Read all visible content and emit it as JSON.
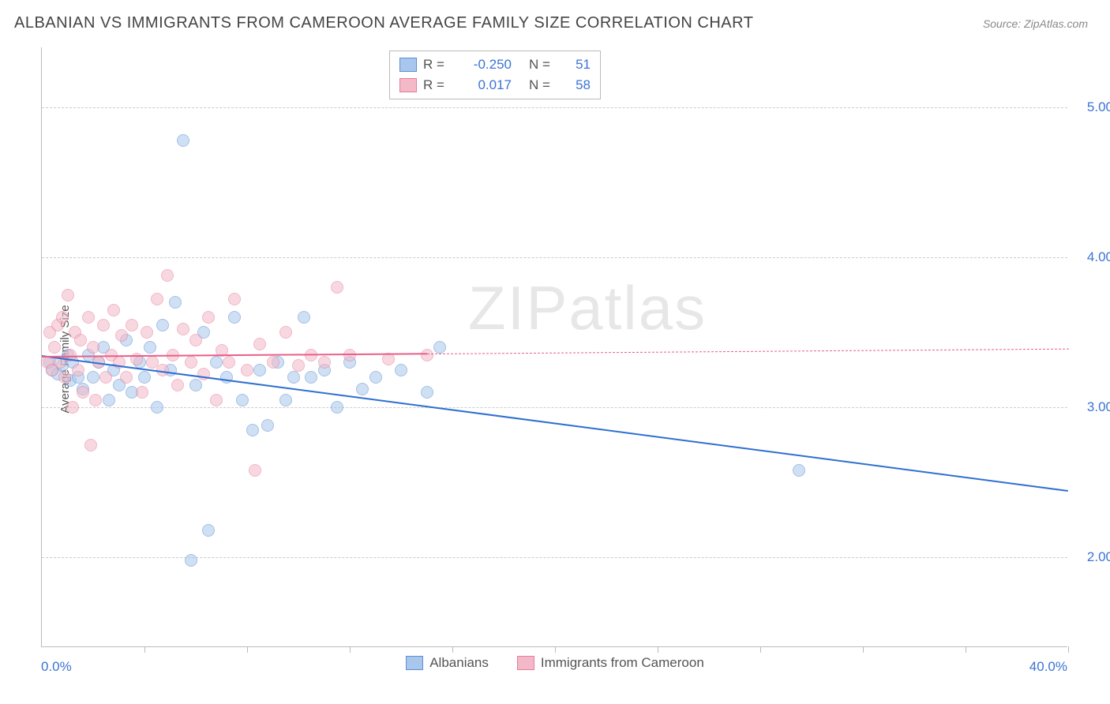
{
  "title": "ALBANIAN VS IMMIGRANTS FROM CAMEROON AVERAGE FAMILY SIZE CORRELATION CHART",
  "source": "Source: ZipAtlas.com",
  "ylabel": "Average Family Size",
  "watermark": "ZIPatlas",
  "chart": {
    "type": "scatter",
    "xlim": [
      0,
      40
    ],
    "ylim": [
      1.4,
      5.4
    ],
    "x_tick_positions": [
      0,
      4,
      8,
      12,
      16,
      20,
      24,
      28,
      32,
      36,
      40
    ],
    "x_axis_label_left": "0.0%",
    "x_axis_label_right": "40.0%",
    "y_ticks": [
      2.0,
      3.0,
      4.0,
      5.0
    ],
    "y_tick_labels": [
      "2.00",
      "3.00",
      "4.00",
      "5.00"
    ],
    "background_color": "#ffffff",
    "grid_color": "#cccccc",
    "axis_color": "#bbbbbb",
    "marker_size": 16,
    "marker_opacity": 0.55,
    "series": [
      {
        "name": "Albanians",
        "fill": "#a9c7ec",
        "stroke": "#5a8fd6",
        "trend_color": "#2f6fd0",
        "R": "-0.250",
        "N": "51",
        "trend": {
          "x1": 0,
          "y1": 3.35,
          "x2": 40,
          "y2": 2.45,
          "dash_from_x": 40
        },
        "points": [
          [
            0.3,
            3.3
          ],
          [
            0.4,
            3.25
          ],
          [
            0.6,
            3.22
          ],
          [
            0.8,
            3.28
          ],
          [
            1.0,
            3.35
          ],
          [
            1.1,
            3.18
          ],
          [
            1.2,
            3.3
          ],
          [
            1.4,
            3.2
          ],
          [
            1.6,
            3.12
          ],
          [
            1.8,
            3.35
          ],
          [
            2.0,
            3.2
          ],
          [
            2.2,
            3.3
          ],
          [
            2.4,
            3.4
          ],
          [
            2.6,
            3.05
          ],
          [
            2.8,
            3.25
          ],
          [
            3.0,
            3.15
          ],
          [
            3.3,
            3.45
          ],
          [
            3.5,
            3.1
          ],
          [
            3.8,
            3.3
          ],
          [
            4.0,
            3.2
          ],
          [
            4.2,
            3.4
          ],
          [
            4.5,
            3.0
          ],
          [
            4.7,
            3.55
          ],
          [
            5.0,
            3.25
          ],
          [
            5.2,
            3.7
          ],
          [
            5.5,
            4.78
          ],
          [
            5.8,
            1.98
          ],
          [
            6.0,
            3.15
          ],
          [
            6.3,
            3.5
          ],
          [
            6.5,
            2.18
          ],
          [
            6.8,
            3.3
          ],
          [
            7.2,
            3.2
          ],
          [
            7.5,
            3.6
          ],
          [
            7.8,
            3.05
          ],
          [
            8.2,
            2.85
          ],
          [
            8.5,
            3.25
          ],
          [
            8.8,
            2.88
          ],
          [
            9.2,
            3.3
          ],
          [
            9.5,
            3.05
          ],
          [
            9.8,
            3.2
          ],
          [
            10.2,
            3.6
          ],
          [
            10.5,
            3.2
          ],
          [
            11.0,
            3.25
          ],
          [
            11.5,
            3.0
          ],
          [
            12.0,
            3.3
          ],
          [
            12.5,
            3.12
          ],
          [
            13.0,
            3.2
          ],
          [
            14.0,
            3.25
          ],
          [
            15.0,
            3.1
          ],
          [
            15.5,
            3.4
          ],
          [
            29.5,
            2.58
          ]
        ]
      },
      {
        "name": "Immigrants from Cameroon",
        "fill": "#f4b9c8",
        "stroke": "#e77d9a",
        "trend_color": "#e85f88",
        "R": "0.017",
        "N": "58",
        "trend": {
          "x1": 0,
          "y1": 3.34,
          "x2": 15,
          "y2": 3.36,
          "dash_from_x": 15
        },
        "points": [
          [
            0.2,
            3.3
          ],
          [
            0.3,
            3.5
          ],
          [
            0.4,
            3.25
          ],
          [
            0.5,
            3.4
          ],
          [
            0.6,
            3.55
          ],
          [
            0.7,
            3.3
          ],
          [
            0.8,
            3.6
          ],
          [
            0.9,
            3.2
          ],
          [
            1.0,
            3.75
          ],
          [
            1.1,
            3.35
          ],
          [
            1.2,
            3.0
          ],
          [
            1.3,
            3.5
          ],
          [
            1.4,
            3.25
          ],
          [
            1.5,
            3.45
          ],
          [
            1.6,
            3.1
          ],
          [
            1.8,
            3.6
          ],
          [
            1.9,
            2.75
          ],
          [
            2.0,
            3.4
          ],
          [
            2.1,
            3.05
          ],
          [
            2.2,
            3.3
          ],
          [
            2.4,
            3.55
          ],
          [
            2.5,
            3.2
          ],
          [
            2.7,
            3.35
          ],
          [
            2.8,
            3.65
          ],
          [
            3.0,
            3.3
          ],
          [
            3.1,
            3.48
          ],
          [
            3.3,
            3.2
          ],
          [
            3.5,
            3.55
          ],
          [
            3.7,
            3.32
          ],
          [
            3.9,
            3.1
          ],
          [
            4.1,
            3.5
          ],
          [
            4.3,
            3.3
          ],
          [
            4.5,
            3.72
          ],
          [
            4.7,
            3.25
          ],
          [
            4.9,
            3.88
          ],
          [
            5.1,
            3.35
          ],
          [
            5.3,
            3.15
          ],
          [
            5.5,
            3.52
          ],
          [
            5.8,
            3.3
          ],
          [
            6.0,
            3.45
          ],
          [
            6.3,
            3.22
          ],
          [
            6.5,
            3.6
          ],
          [
            6.8,
            3.05
          ],
          [
            7.0,
            3.38
          ],
          [
            7.3,
            3.3
          ],
          [
            7.5,
            3.72
          ],
          [
            8.0,
            3.25
          ],
          [
            8.3,
            2.58
          ],
          [
            8.5,
            3.42
          ],
          [
            9.0,
            3.3
          ],
          [
            9.5,
            3.5
          ],
          [
            10.0,
            3.28
          ],
          [
            10.5,
            3.35
          ],
          [
            11.0,
            3.3
          ],
          [
            11.5,
            3.8
          ],
          [
            12.0,
            3.35
          ],
          [
            13.5,
            3.32
          ],
          [
            15.0,
            3.35
          ]
        ]
      }
    ]
  },
  "legend": {
    "r_label": "R =",
    "n_label": "N ="
  }
}
